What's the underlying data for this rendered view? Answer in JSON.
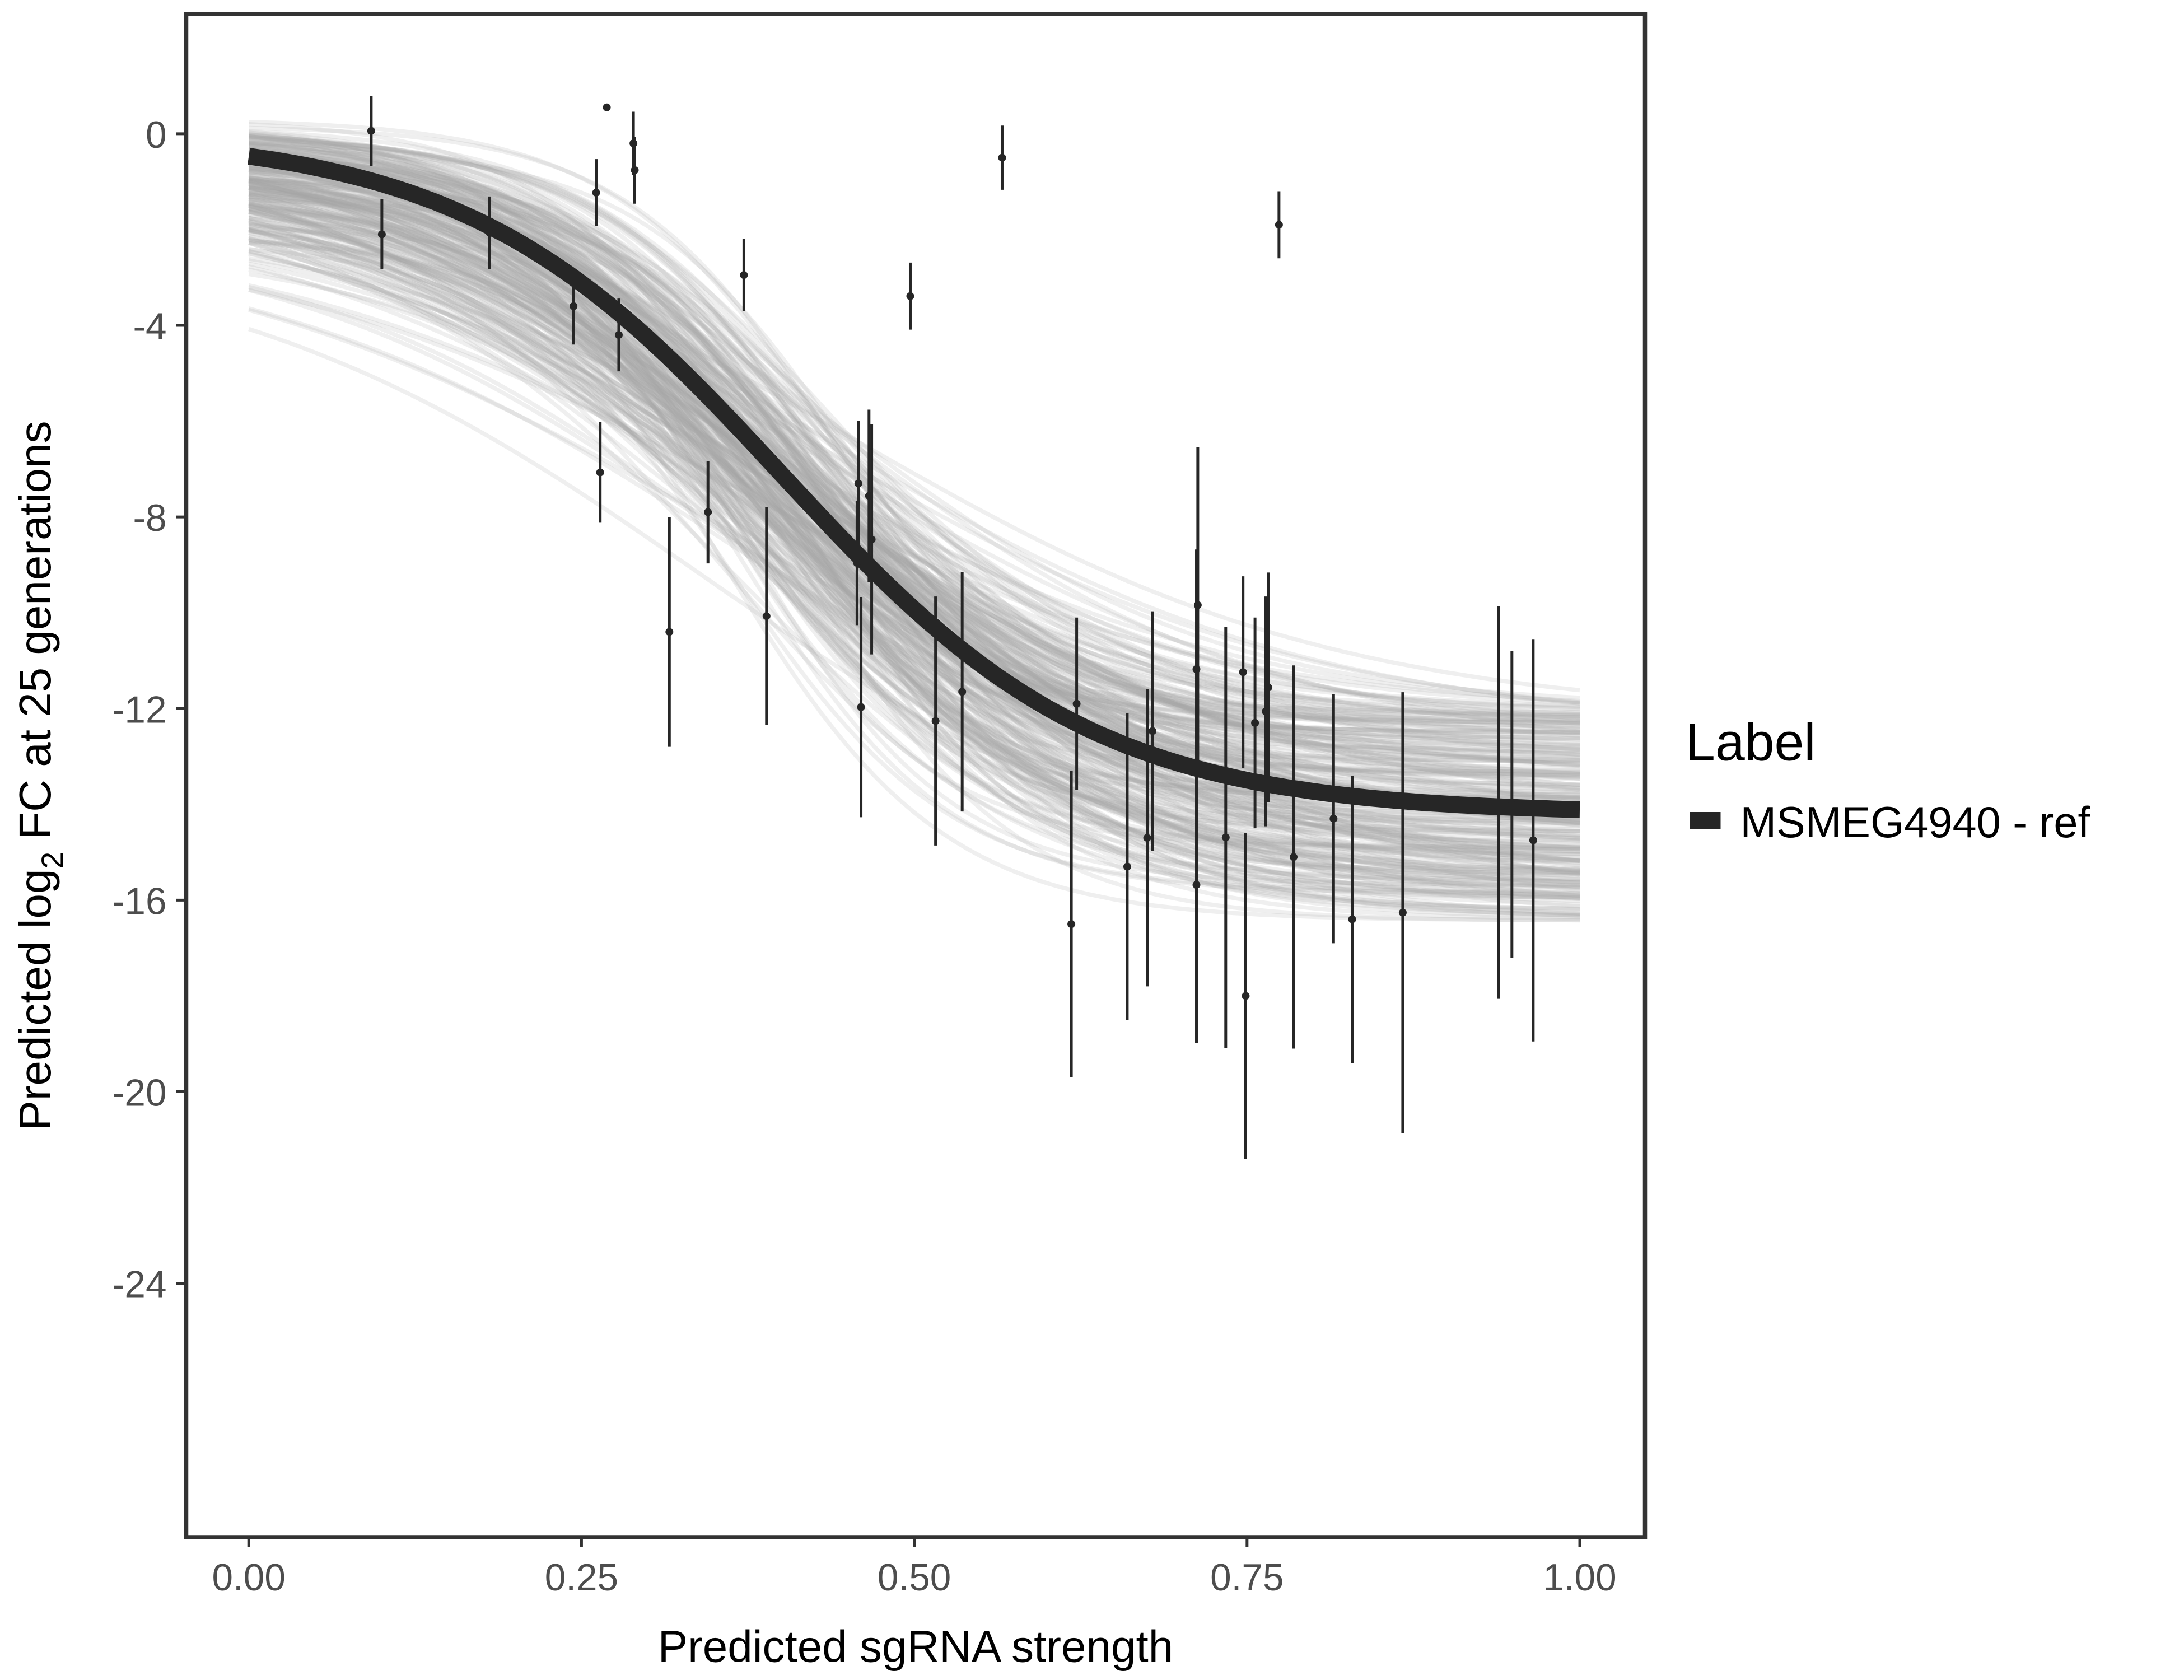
{
  "chart_data": {
    "type": "scatter",
    "title": "",
    "xlabel": "Predicted sgRNA strength",
    "ylabel_prefix": "Predicted  log",
    "ylabel_sub": "2",
    "ylabel_suffix": " FC at 25 generations",
    "xlim": [
      -0.047,
      1.049
    ],
    "ylim": [
      -29.3,
      2.5
    ],
    "x_ticks": [
      0,
      0.25,
      0.5,
      0.75,
      1
    ],
    "x_tick_labels": [
      "0.00",
      "0.25",
      "0.50",
      "0.75",
      "1.00"
    ],
    "y_ticks": [
      0,
      -4,
      -8,
      -12,
      -16,
      -20,
      -24
    ],
    "y_tick_labels": [
      "0",
      "-4",
      "-8",
      "-12",
      "-16",
      "-20",
      "-24"
    ],
    "grid": false,
    "legend": {
      "title": "Label",
      "placement": "right",
      "entries": [
        {
          "label": "MSMEG4940 - ref",
          "color": "#262626"
        }
      ]
    },
    "fit_curve": {
      "model": "logistic",
      "upper": 0,
      "lower": -14.2,
      "midpoint": 0.4,
      "slope": 8.44,
      "color": "#262626"
    },
    "posterior_band_color": "#a6a6a6",
    "points": [
      {
        "x": 0.092,
        "y": 0.06,
        "err": 0.73
      },
      {
        "x": 0.1,
        "y": -2.1,
        "err": 0.73
      },
      {
        "x": 0.181,
        "y": -2.07,
        "err": 0.76
      },
      {
        "x": 0.244,
        "y": -3.6,
        "err": 0.8
      },
      {
        "x": 0.261,
        "y": -1.23,
        "err": 0.7
      },
      {
        "x": 0.264,
        "y": -7.07,
        "err": 1.05
      },
      {
        "x": 0.269,
        "y": 0.55,
        "err": 0
      },
      {
        "x": 0.278,
        "y": -4.2,
        "err": 0.76
      },
      {
        "x": 0.289,
        "y": -0.2,
        "err": 0.66
      },
      {
        "x": 0.29,
        "y": -0.76,
        "err": 0.7
      },
      {
        "x": 0.316,
        "y": -10.4,
        "err": 2.4
      },
      {
        "x": 0.345,
        "y": -7.9,
        "err": 1.07
      },
      {
        "x": 0.372,
        "y": -2.95,
        "err": 0.75
      },
      {
        "x": 0.389,
        "y": -10.07,
        "err": 2.27
      },
      {
        "x": 0.458,
        "y": -7.3,
        "err": 1.3
      },
      {
        "x": 0.457,
        "y": -8.96,
        "err": 1.3
      },
      {
        "x": 0.46,
        "y": -11.97,
        "err": 2.3
      },
      {
        "x": 0.466,
        "y": -7.56,
        "err": 1.8
      },
      {
        "x": 0.468,
        "y": -8.47,
        "err": 2.4
      },
      {
        "x": 0.497,
        "y": -3.39,
        "err": 0.7
      },
      {
        "x": 0.516,
        "y": -12.26,
        "err": 2.6
      },
      {
        "x": 0.536,
        "y": -11.65,
        "err": 2.5
      },
      {
        "x": 0.566,
        "y": -0.5,
        "err": 0.67
      },
      {
        "x": 0.618,
        "y": -16.5,
        "err": 3.2
      },
      {
        "x": 0.622,
        "y": -11.9,
        "err": 1.8
      },
      {
        "x": 0.66,
        "y": -15.3,
        "err": 3.2
      },
      {
        "x": 0.675,
        "y": -14.7,
        "err": 3.1
      },
      {
        "x": 0.679,
        "y": -12.47,
        "err": 2.5
      },
      {
        "x": 0.712,
        "y": -11.18,
        "err": 2.5
      },
      {
        "x": 0.713,
        "y": -9.84,
        "err": 3.3
      },
      {
        "x": 0.712,
        "y": -15.68,
        "err": 3.3
      },
      {
        "x": 0.734,
        "y": -14.69,
        "err": 4.4
      },
      {
        "x": 0.747,
        "y": -11.24,
        "err": 2.0
      },
      {
        "x": 0.749,
        "y": -18.0,
        "err": 3.4
      },
      {
        "x": 0.756,
        "y": -12.3,
        "err": 2.2
      },
      {
        "x": 0.764,
        "y": -12.06,
        "err": 2.4
      },
      {
        "x": 0.766,
        "y": -11.56,
        "err": 2.4
      },
      {
        "x": 0.774,
        "y": -1.9,
        "err": 0.7
      },
      {
        "x": 0.785,
        "y": -15.1,
        "err": 4.0
      },
      {
        "x": 0.815,
        "y": -14.3,
        "err": 2.6
      },
      {
        "x": 0.829,
        "y": -16.4,
        "err": 3.0
      },
      {
        "x": 0.867,
        "y": -16.26,
        "err": 4.6
      },
      {
        "x": 0.939,
        "y": -13.96,
        "err": 4.1
      },
      {
        "x": 0.949,
        "y": -14.0,
        "err": 3.2
      },
      {
        "x": 0.965,
        "y": -14.75,
        "err": 4.2
      }
    ]
  }
}
